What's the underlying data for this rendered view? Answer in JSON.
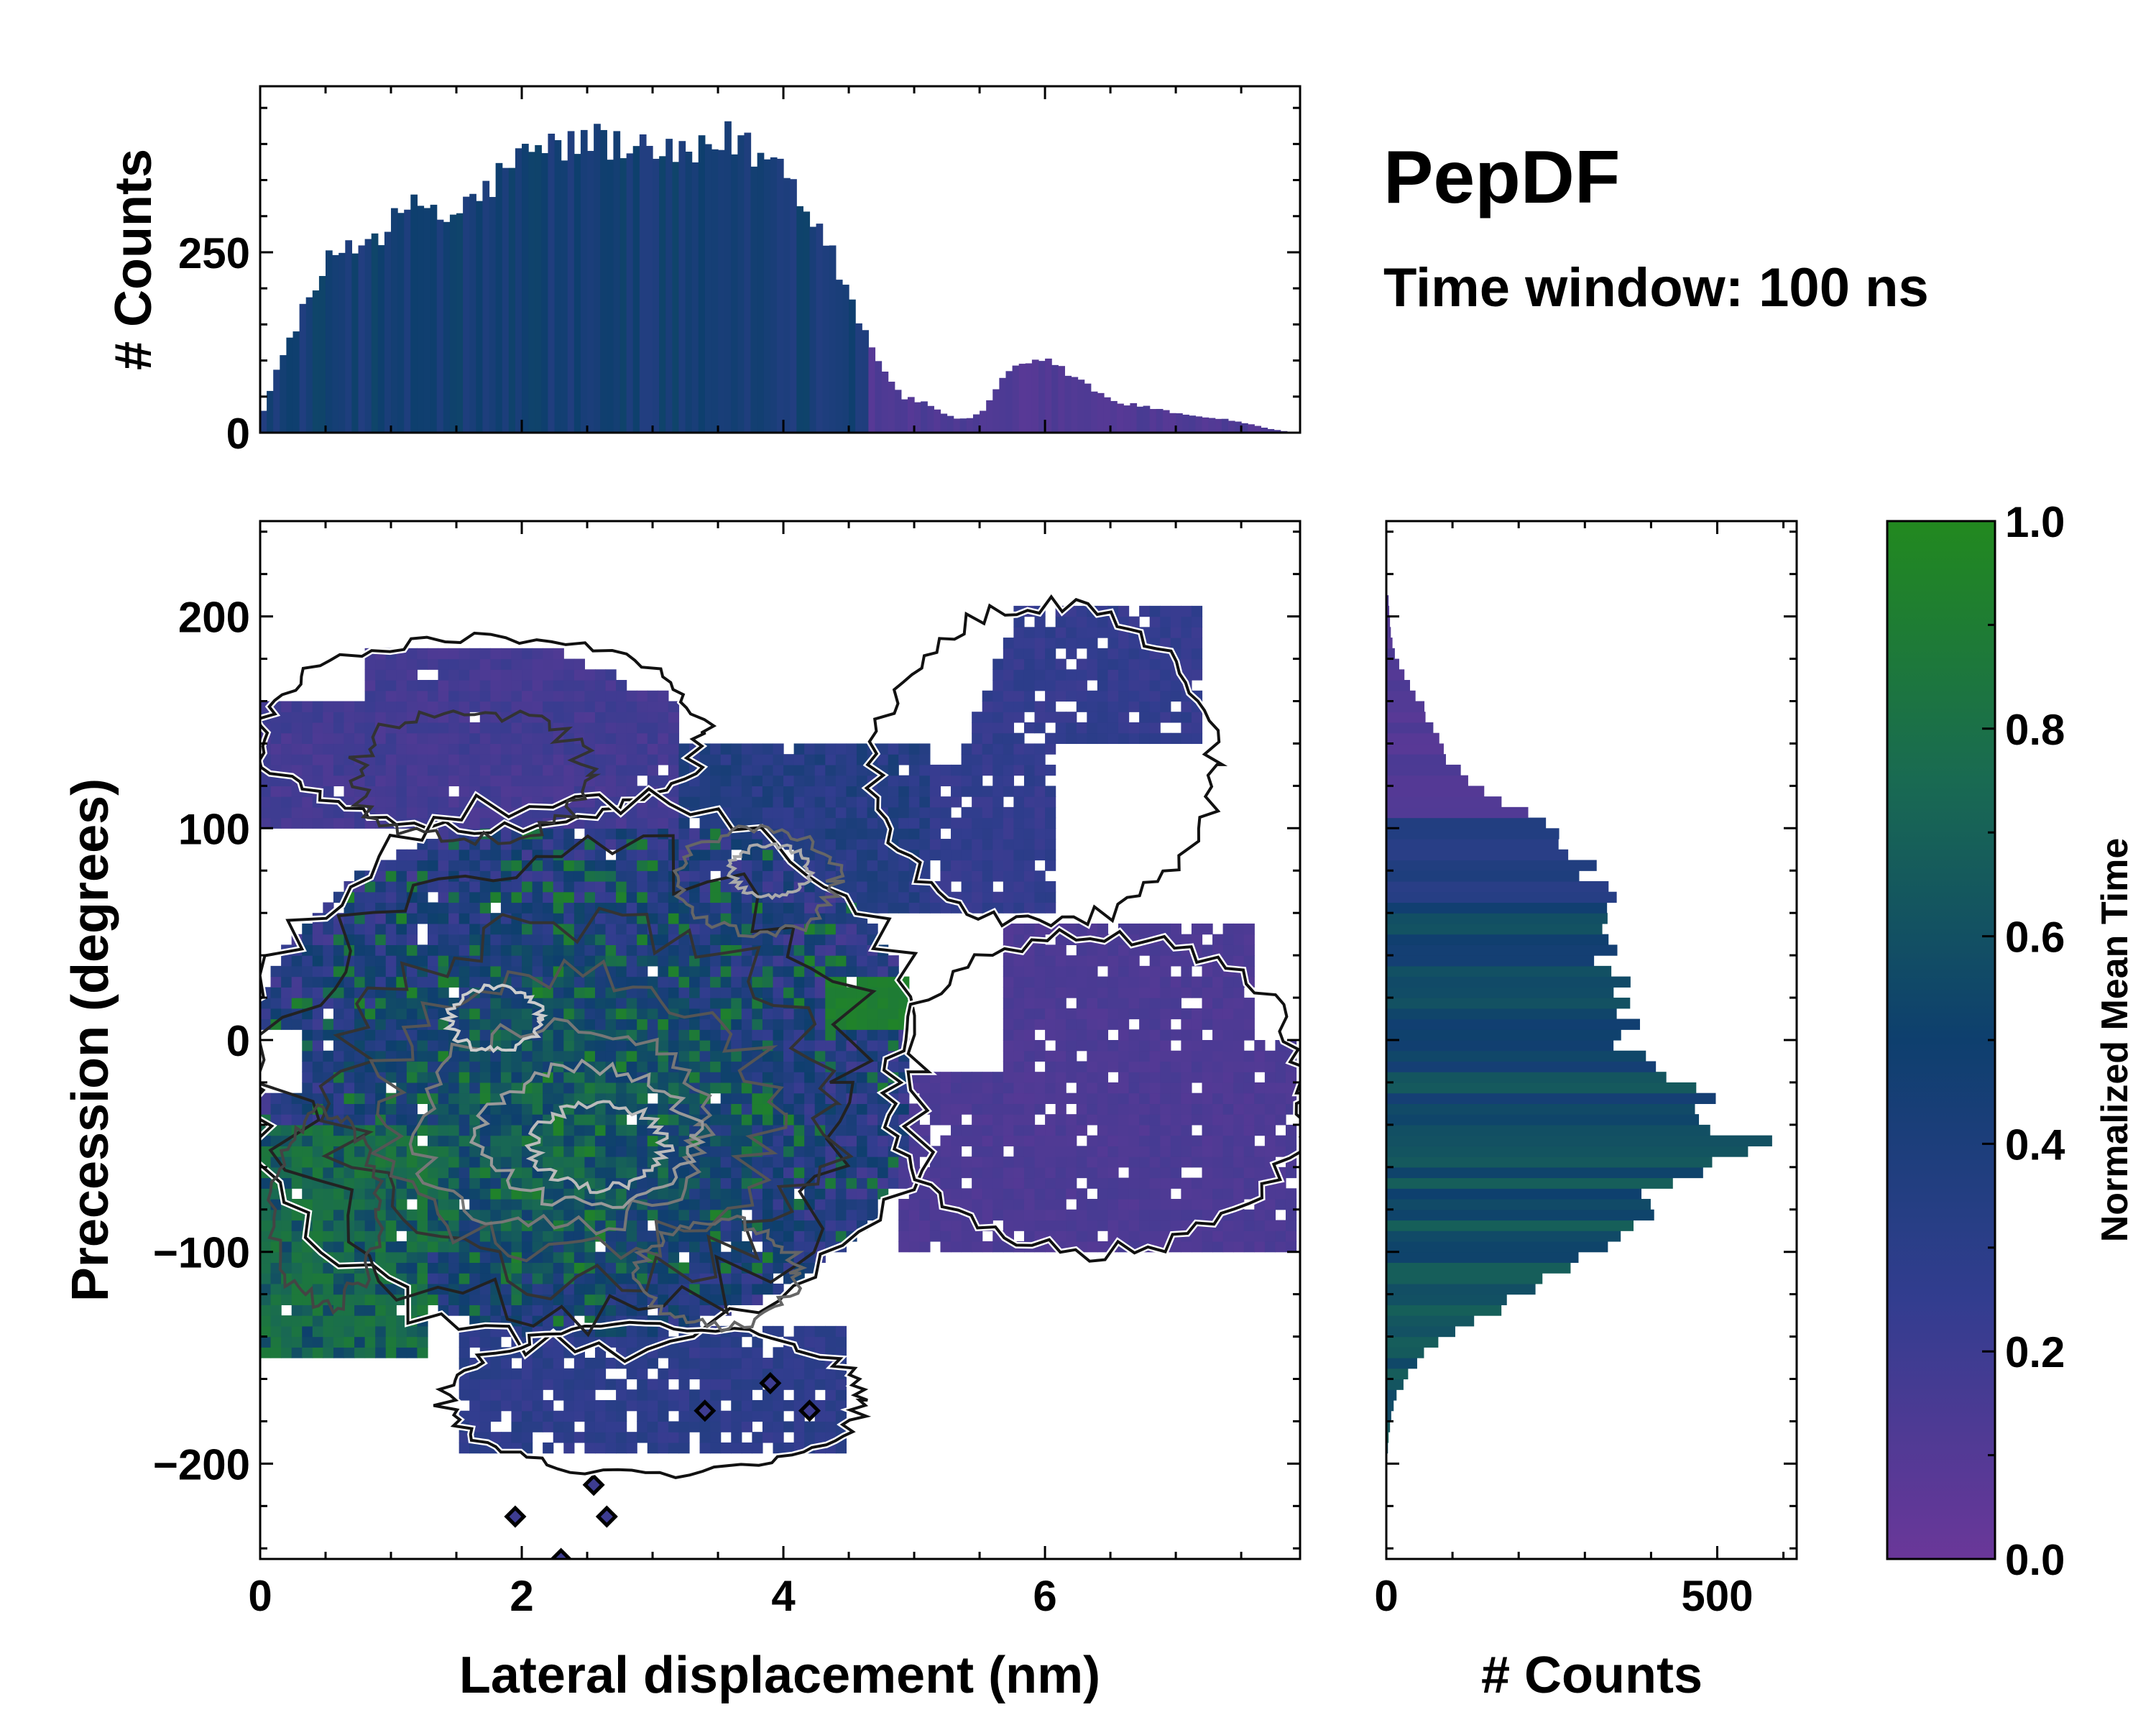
{
  "title": "PepDF",
  "subtitle": "Time window: 100 ns",
  "chart_data": [
    {
      "type": "bar",
      "panel": "top-marginal-histogram",
      "ylabel": "# Counts",
      "xlim": [
        0,
        7.95
      ],
      "ylim": [
        0,
        480
      ],
      "yticks": [
        "0",
        "250"
      ],
      "bin_width": 0.05,
      "envelope": {
        "x": [
          0.0,
          0.1,
          0.2,
          0.3,
          0.4,
          0.5,
          0.6,
          0.7,
          0.8,
          0.9,
          1.0,
          1.1,
          1.2,
          1.3,
          1.4,
          1.5,
          1.6,
          1.7,
          1.8,
          1.9,
          2.0,
          2.1,
          2.2,
          2.3,
          2.4,
          2.5,
          2.6,
          2.7,
          2.8,
          2.9,
          3.0,
          3.1,
          3.2,
          3.3,
          3.4,
          3.5,
          3.6,
          3.7,
          3.8,
          3.9,
          4.0,
          4.1,
          4.2,
          4.3,
          4.4,
          4.5,
          4.6,
          4.7,
          4.8,
          4.9,
          5.0,
          5.1,
          5.2,
          5.3,
          5.4,
          5.5,
          5.6,
          5.7,
          5.8,
          5.9,
          6.0,
          6.1,
          6.2,
          6.3,
          6.4,
          6.5,
          6.6,
          6.7,
          6.8,
          6.9,
          7.0,
          7.1,
          7.2,
          7.3,
          7.4,
          7.5,
          7.6,
          7.7,
          7.8,
          7.9
        ],
        "counts": [
          20,
          70,
          120,
          160,
          190,
          230,
          255,
          262,
          268,
          275,
          290,
          300,
          315,
          320,
          290,
          305,
          320,
          330,
          350,
          370,
          380,
          390,
          395,
          400,
          395,
          410,
          405,
          400,
          395,
          385,
          390,
          380,
          385,
          375,
          390,
          395,
          410,
          400,
          385,
          380,
          370,
          340,
          310,
          280,
          240,
          190,
          150,
          110,
          80,
          50,
          45,
          40,
          30,
          20,
          20,
          25,
          50,
          80,
          90,
          95,
          100,
          90,
          80,
          70,
          55,
          45,
          40,
          38,
          35,
          30,
          28,
          25,
          22,
          20,
          18,
          15,
          10,
          6,
          3,
          0
        ]
      },
      "color_by": "normalized mean time"
    },
    {
      "type": "heatmap",
      "panel": "main-2d-histogram",
      "xlabel": "Lateral displacement (nm)",
      "ylabel": "Precession (degrees)",
      "xlim": [
        0,
        7.95
      ],
      "ylim": [
        -245,
        245
      ],
      "xticks": [
        "0",
        "2",
        "4",
        "6"
      ],
      "yticks": [
        "−200",
        "−100",
        "0",
        "100",
        "200"
      ],
      "colorbar_label": "Normalized Mean Time",
      "clim": [
        0.0,
        1.0
      ],
      "contours": true,
      "regions": [
        {
          "name": "upper-left lobe",
          "x": [
            0.0,
            3.2
          ],
          "y": [
            100,
            185
          ],
          "mean_time": 0.12
        },
        {
          "name": "central main cloud",
          "x": [
            0.0,
            5.0
          ],
          "y": [
            -140,
            110
          ],
          "mean_time": 0.45
        },
        {
          "name": "green band left",
          "x": [
            0.0,
            1.5
          ],
          "y": [
            -150,
            -40
          ],
          "mean_time": 0.88
        },
        {
          "name": "green patch mid-right",
          "x": [
            4.3,
            4.95
          ],
          "y": [
            5,
            30
          ],
          "mean_time": 0.92
        },
        {
          "name": "upper-right arm",
          "x": [
            4.5,
            7.3
          ],
          "y": [
            60,
            205
          ],
          "mean_time": 0.25
        },
        {
          "name": "right lobe",
          "x": [
            4.9,
            7.95
          ],
          "y": [
            -100,
            55
          ],
          "mean_time": 0.1
        },
        {
          "name": "lower tail",
          "x": [
            1.5,
            4.5
          ],
          "y": [
            -245,
            -150
          ],
          "mean_time": 0.25
        }
      ]
    },
    {
      "type": "bar",
      "panel": "right-marginal-histogram",
      "orientation": "horizontal",
      "xlabel": "# Counts",
      "xlim": [
        0,
        620
      ],
      "ylim": [
        -245,
        245
      ],
      "xticks": [
        "0",
        "500"
      ],
      "bin_width": 5,
      "envelope": {
        "y": [
          210,
          200,
          190,
          180,
          170,
          160,
          150,
          140,
          130,
          120,
          110,
          100,
          90,
          80,
          70,
          60,
          50,
          40,
          30,
          20,
          10,
          0,
          -10,
          -20,
          -30,
          -40,
          -50,
          -60,
          -70,
          -80,
          -90,
          -100,
          -110,
          -120,
          -130,
          -140,
          -150,
          -160,
          -170,
          -180,
          -190,
          -200
        ],
        "counts": [
          3,
          5,
          8,
          15,
          30,
          50,
          65,
          80,
          100,
          140,
          200,
          260,
          290,
          310,
          330,
          350,
          340,
          320,
          340,
          380,
          360,
          350,
          380,
          430,
          480,
          520,
          560,
          520,
          400,
          380,
          370,
          300,
          260,
          210,
          150,
          90,
          50,
          30,
          12,
          6,
          3,
          1
        ]
      },
      "color_by": "normalized mean time"
    }
  ]
}
